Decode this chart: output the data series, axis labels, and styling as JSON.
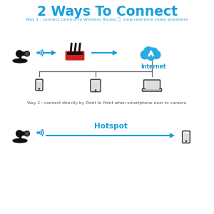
{
  "title": "2 Ways To Connect",
  "title_color": "#1a9dd9",
  "title_fontsize": 13.5,
  "way1_label": "Way 1 : connect camera to Wireless Router ：  view real-time video anywhere",
  "way2_label": "Way 2 : connect directly by Point to Point when smartphone near to camera",
  "way1_label_color": "#29abe2",
  "way2_label_color": "#555555",
  "hotspot_label": "Hotspot",
  "hotspot_color": "#1a9dd9",
  "internet_label": "Internet",
  "internet_color": "#1a9dd9",
  "arrow_color": "#1a9dd9",
  "wifi_color": "#1a9dd9",
  "background_color": "#ffffff",
  "line_color": "#666666",
  "device_color": "#444444",
  "router_red": "#cc2222",
  "router_black": "#111111",
  "camera_color": "#111111"
}
